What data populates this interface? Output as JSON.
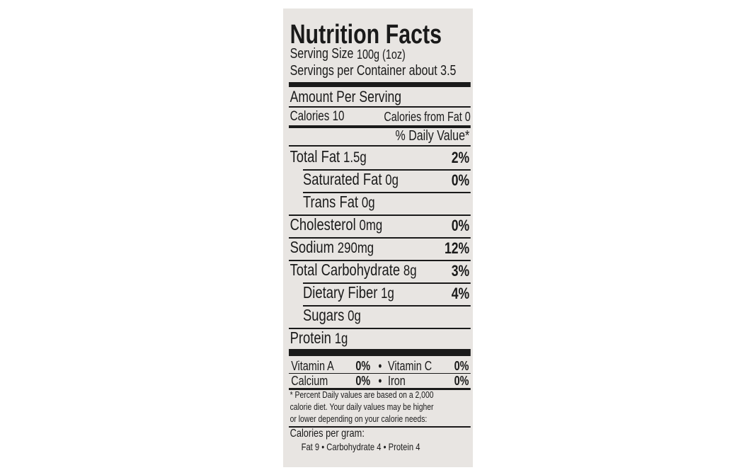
{
  "title": "Nutrition Facts",
  "serving_size": {
    "label": "Serving Size",
    "value": "100g (1oz)"
  },
  "servings_per_container": "Servings per Container about 3.5",
  "amount_per_serving": "Amount Per Serving",
  "calories": "Calories 10",
  "calories_from_fat": "Calories from Fat 0",
  "daily_value_header": "% Daily Value*",
  "nutrients": [
    {
      "name": "Total Fat",
      "amount": "1.5g",
      "daily_value": "2%",
      "indent": false
    },
    {
      "name": "Saturated Fat",
      "amount": "0g",
      "daily_value": "0%",
      "indent": true
    },
    {
      "name": "Trans Fat",
      "amount": "0g",
      "indent": true
    },
    {
      "name": "Cholesterol",
      "amount": "0mg",
      "daily_value": "0%",
      "indent": false
    },
    {
      "name": "Sodium",
      "amount": "290mg",
      "daily_value": "12%",
      "indent": false
    },
    {
      "name": "Total Carbohydrate",
      "amount": "8g",
      "daily_value": "3%",
      "indent": false
    },
    {
      "name": "Dietary Fiber",
      "amount": "1g",
      "daily_value": "4%",
      "indent": true
    },
    {
      "name": "Sugars",
      "amount": "0g",
      "indent": true
    },
    {
      "name": "Protein",
      "amount": "1g",
      "indent": false
    }
  ],
  "vitamins": [
    [
      {
        "name": "Vitamin A",
        "value": "0%"
      },
      {
        "name": "Vitamin C",
        "value": "0%"
      }
    ],
    [
      {
        "name": "Calcium",
        "value": "0%"
      },
      {
        "name": "Iron",
        "value": "0%"
      }
    ]
  ],
  "separator": "•",
  "footnote": [
    "* Percent Daily values are based on a 2,000",
    "calorie diet.  Your daily values may be higher",
    "or lower depending on your calorie needs:"
  ],
  "calories_per_gram": {
    "label": "Calories per gram:",
    "values": "Fat 9 • Carbohydrate 4 • Protein 4"
  }
}
